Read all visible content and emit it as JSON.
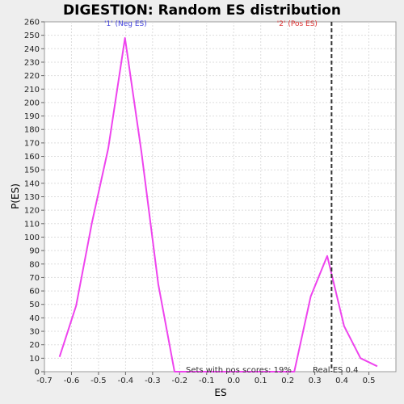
{
  "chart_data": {
    "type": "line",
    "title": "DIGESTION: Random ES distribution",
    "xlabel": "ES",
    "ylabel": "P(ES)",
    "xlim": [
      -0.7,
      0.6
    ],
    "ylim": [
      0,
      260
    ],
    "xticks": [
      -0.7,
      -0.6,
      -0.5,
      -0.4,
      -0.3,
      -0.2,
      -0.1,
      0.0,
      0.1,
      0.2,
      0.3,
      0.4,
      0.5
    ],
    "xtick_labels": [
      "-0.7",
      "-0.6",
      "-0.5",
      "-0.4",
      "-0.3",
      "-0.2",
      "-0.1",
      "0.0",
      "0.1",
      "0.2",
      "0.3",
      "0.4",
      "0.5"
    ],
    "yticks": [
      0,
      10,
      20,
      30,
      40,
      50,
      60,
      70,
      80,
      90,
      100,
      110,
      120,
      130,
      140,
      150,
      160,
      170,
      180,
      190,
      200,
      210,
      220,
      230,
      240,
      250,
      260
    ],
    "grid": true,
    "series": [
      {
        "color": "#ee44ee",
        "x": [
          -0.644,
          -0.583,
          -0.524,
          -0.464,
          -0.402,
          -0.341,
          -0.279,
          -0.219,
          0.224,
          0.285,
          0.346,
          0.408,
          0.469,
          0.531
        ],
        "y": [
          11,
          49,
          111,
          166,
          248,
          163,
          65,
          0,
          0,
          56,
          86,
          34,
          10,
          4
        ]
      }
    ],
    "vline": {
      "x": 0.362,
      "color": "#333333",
      "style": "dashed"
    },
    "annotations": [
      {
        "text": "'1' (Neg ES)",
        "color": "#4444dd",
        "x": -0.4,
        "y": 257
      },
      {
        "text": "'2' (Pos ES)",
        "color": "#dd3333",
        "x": 0.235,
        "y": 257
      }
    ],
    "footer_left": "Sets with pos scores: 19%",
    "footer_right": "Real ES 0.4"
  }
}
